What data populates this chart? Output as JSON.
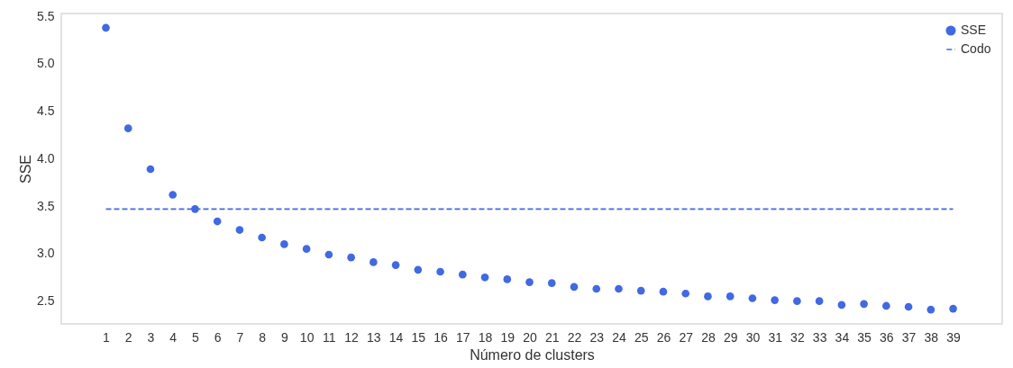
{
  "chart_data": {
    "type": "scatter",
    "xlabel": "Número de clusters",
    "ylabel": "SSE",
    "x": [
      1,
      2,
      3,
      4,
      5,
      6,
      7,
      8,
      9,
      10,
      11,
      12,
      13,
      14,
      15,
      16,
      17,
      18,
      19,
      20,
      21,
      22,
      23,
      24,
      25,
      26,
      27,
      28,
      29,
      30,
      31,
      32,
      33,
      34,
      35,
      36,
      37,
      38,
      39
    ],
    "xlim": [
      -1,
      41.2
    ],
    "xticks": [
      1,
      2,
      3,
      4,
      5,
      6,
      7,
      8,
      9,
      10,
      11,
      12,
      13,
      14,
      15,
      16,
      17,
      18,
      19,
      20,
      21,
      22,
      23,
      24,
      25,
      26,
      27,
      28,
      29,
      30,
      31,
      32,
      33,
      34,
      35,
      36,
      37,
      38,
      39
    ],
    "ylim": [
      2.26,
      5.53
    ],
    "yticks": [
      2.5,
      {
        "value": 3,
        "label": "3.0"
      },
      3.5,
      {
        "value": 4,
        "label": "4.0"
      },
      4.5,
      {
        "value": 5,
        "label": "5.0"
      },
      5.5
    ],
    "series": [
      {
        "name": "SSE",
        "type": "scatter",
        "marker": "circle",
        "color": "#4169e1",
        "values": [
          5.38,
          4.32,
          3.89,
          3.62,
          3.47,
          3.34,
          3.25,
          3.17,
          3.1,
          3.05,
          2.99,
          2.96,
          2.91,
          2.88,
          2.83,
          2.81,
          2.78,
          2.75,
          2.73,
          2.7,
          2.69,
          2.65,
          2.63,
          2.63,
          2.61,
          2.6,
          2.58,
          2.55,
          2.55,
          2.53,
          2.51,
          2.5,
          2.5,
          2.46,
          2.47,
          2.45,
          2.44,
          2.41,
          2.42
        ]
      },
      {
        "name": "Codo",
        "type": "line",
        "line_style": "dashed",
        "color": "#4169e1",
        "x": [
          1,
          39
        ],
        "values": [
          3.47,
          3.47
        ]
      }
    ],
    "legend": "top right",
    "grid": false
  }
}
